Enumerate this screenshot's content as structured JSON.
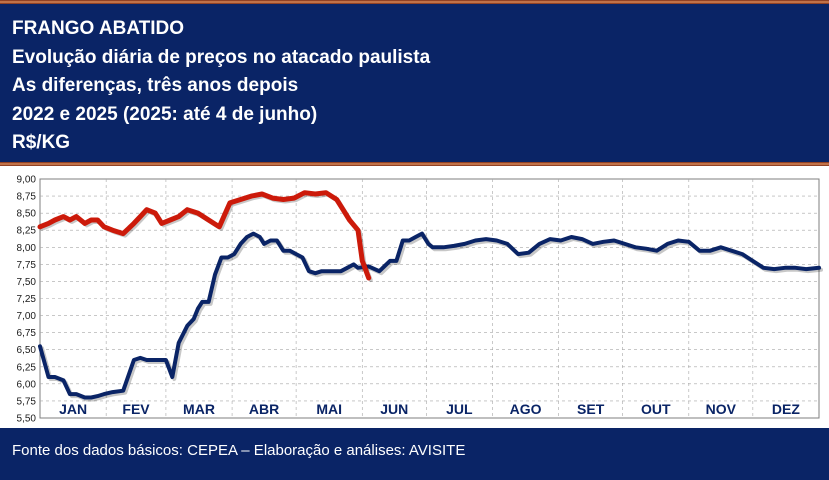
{
  "header": {
    "lines": [
      "FRANGO ABATIDO",
      "Evolução diária de preços no atacado paulista",
      "As diferenças, três anos depois",
      "2022 e 2025 (2025: até 4 de junho)",
      "R$/KG"
    ]
  },
  "footer": {
    "source": "Fonte dos dados básicos: CEPEA – Elaboração e análises: AVISITE"
  },
  "colors": {
    "header_bg": "#0a2466",
    "series_2022": "#0a2466",
    "series_2025": "#cc1a0a",
    "stripe": "#b5532a"
  },
  "chart_data": {
    "type": "line",
    "title": "FRANGO ABATIDO",
    "ylabel": "R$/KG",
    "ylim": [
      5.5,
      9.0
    ],
    "xlim": [
      1,
      366
    ],
    "yticks": [
      "5,50",
      "5,75",
      "6,00",
      "6,25",
      "6,50",
      "6,75",
      "7,00",
      "7,25",
      "7,50",
      "7,75",
      "8,00",
      "8,25",
      "8,50",
      "8,75",
      "9,00"
    ],
    "month_labels": [
      "JAN",
      "FEV",
      "MAR",
      "ABR",
      "MAI",
      "JUN",
      "JUL",
      "AGO",
      "SET",
      "OUT",
      "NOV",
      "DEZ"
    ],
    "grid": true,
    "legend": "none",
    "series": [
      {
        "key": "2022",
        "x": [
          1,
          5,
          8,
          12,
          15,
          18,
          22,
          25,
          28,
          31,
          35,
          40,
          45,
          48,
          51,
          55,
          58,
          60,
          63,
          66,
          70,
          73,
          75,
          77,
          80,
          83,
          86,
          89,
          92,
          95,
          98,
          101,
          104,
          106,
          109,
          112,
          115,
          118,
          121,
          124,
          127,
          130,
          133,
          136,
          139,
          142,
          145,
          148,
          150,
          155,
          160,
          165,
          168,
          171,
          174,
          177,
          180,
          183,
          185,
          190,
          195,
          200,
          205,
          210,
          215,
          220,
          225,
          230,
          235,
          240,
          245,
          250,
          255,
          260,
          265,
          270,
          275,
          280,
          285,
          290,
          295,
          300,
          305,
          310,
          315,
          320,
          325,
          330,
          335,
          340,
          345,
          350,
          355,
          360,
          366
        ],
        "values": [
          6.55,
          6.1,
          6.1,
          6.05,
          5.85,
          5.85,
          5.8,
          5.8,
          5.82,
          5.85,
          5.88,
          5.9,
          6.35,
          6.38,
          6.35,
          6.35,
          6.35,
          6.35,
          6.1,
          6.6,
          6.85,
          6.95,
          7.1,
          7.2,
          7.2,
          7.6,
          7.85,
          7.85,
          7.9,
          8.05,
          8.15,
          8.2,
          8.15,
          8.05,
          8.1,
          8.1,
          7.95,
          7.95,
          7.9,
          7.85,
          7.65,
          7.62,
          7.65,
          7.65,
          7.65,
          7.65,
          7.7,
          7.75,
          7.7,
          7.72,
          7.65,
          7.8,
          7.8,
          8.1,
          8.1,
          8.15,
          8.2,
          8.05,
          8.0,
          8.0,
          8.02,
          8.05,
          8.1,
          8.12,
          8.1,
          8.05,
          7.9,
          7.92,
          8.05,
          8.12,
          8.1,
          8.15,
          8.12,
          8.05,
          8.08,
          8.1,
          8.05,
          8.0,
          7.98,
          7.95,
          8.05,
          8.1,
          8.08,
          7.95,
          7.95,
          8.0,
          7.95,
          7.9,
          7.8,
          7.7,
          7.68,
          7.7,
          7.7,
          7.68,
          7.7
        ]
      },
      {
        "key": "2025",
        "x": [
          1,
          5,
          8,
          12,
          15,
          18,
          22,
          25,
          28,
          31,
          35,
          40,
          45,
          48,
          51,
          55,
          58,
          62,
          66,
          70,
          75,
          80,
          85,
          90,
          95,
          100,
          105,
          110,
          115,
          120,
          125,
          130,
          135,
          140,
          143,
          146,
          150,
          152,
          155
        ],
        "values": [
          8.3,
          8.35,
          8.4,
          8.45,
          8.4,
          8.45,
          8.35,
          8.4,
          8.4,
          8.3,
          8.25,
          8.2,
          8.35,
          8.45,
          8.55,
          8.5,
          8.35,
          8.4,
          8.45,
          8.55,
          8.5,
          8.4,
          8.3,
          8.65,
          8.7,
          8.75,
          8.78,
          8.72,
          8.7,
          8.72,
          8.8,
          8.78,
          8.8,
          8.7,
          8.55,
          8.4,
          8.25,
          7.8,
          7.55
        ]
      }
    ]
  }
}
